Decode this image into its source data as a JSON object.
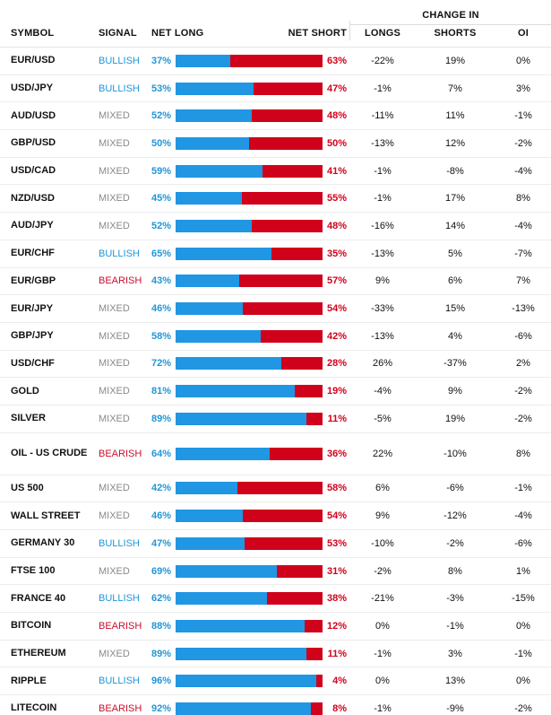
{
  "header": {
    "symbol": "SYMBOL",
    "signal": "SIGNAL",
    "net_long": "NET LONG",
    "net_short": "NET SHORT",
    "change_in": "CHANGE IN",
    "longs": "LONGS",
    "shorts": "SHORTS",
    "oi": "OI"
  },
  "colors": {
    "long": "#2196e3",
    "short": "#d0021b",
    "bullish": "#2196d8",
    "bearish": "#c8102e",
    "mixed": "#8a8a8a"
  },
  "rows": [
    {
      "symbol": "EUR/USD",
      "signal": "BULLISH",
      "net_long": "37%",
      "long_pct": 37,
      "net_short": "63%",
      "longs": "-22%",
      "shorts": "19%",
      "oi": "0%"
    },
    {
      "symbol": "USD/JPY",
      "signal": "BULLISH",
      "net_long": "53%",
      "long_pct": 53,
      "net_short": "47%",
      "longs": "-1%",
      "shorts": "7%",
      "oi": "3%"
    },
    {
      "symbol": "AUD/USD",
      "signal": "MIXED",
      "net_long": "52%",
      "long_pct": 52,
      "net_short": "48%",
      "longs": "-11%",
      "shorts": "11%",
      "oi": "-1%"
    },
    {
      "symbol": "GBP/USD",
      "signal": "MIXED",
      "net_long": "50%",
      "long_pct": 50,
      "net_short": "50%",
      "longs": "-13%",
      "shorts": "12%",
      "oi": "-2%"
    },
    {
      "symbol": "USD/CAD",
      "signal": "MIXED",
      "net_long": "59%",
      "long_pct": 59,
      "net_short": "41%",
      "longs": "-1%",
      "shorts": "-8%",
      "oi": "-4%"
    },
    {
      "symbol": "NZD/USD",
      "signal": "MIXED",
      "net_long": "45%",
      "long_pct": 45,
      "net_short": "55%",
      "longs": "-1%",
      "shorts": "17%",
      "oi": "8%"
    },
    {
      "symbol": "AUD/JPY",
      "signal": "MIXED",
      "net_long": "52%",
      "long_pct": 52,
      "net_short": "48%",
      "longs": "-16%",
      "shorts": "14%",
      "oi": "-4%"
    },
    {
      "symbol": "EUR/CHF",
      "signal": "BULLISH",
      "net_long": "65%",
      "long_pct": 65,
      "net_short": "35%",
      "longs": "-13%",
      "shorts": "5%",
      "oi": "-7%"
    },
    {
      "symbol": "EUR/GBP",
      "signal": "BEARISH",
      "net_long": "43%",
      "long_pct": 43,
      "net_short": "57%",
      "longs": "9%",
      "shorts": "6%",
      "oi": "7%"
    },
    {
      "symbol": "EUR/JPY",
      "signal": "MIXED",
      "net_long": "46%",
      "long_pct": 46,
      "net_short": "54%",
      "longs": "-33%",
      "shorts": "15%",
      "oi": "-13%"
    },
    {
      "symbol": "GBP/JPY",
      "signal": "MIXED",
      "net_long": "58%",
      "long_pct": 58,
      "net_short": "42%",
      "longs": "-13%",
      "shorts": "4%",
      "oi": "-6%"
    },
    {
      "symbol": "USD/CHF",
      "signal": "MIXED",
      "net_long": "72%",
      "long_pct": 72,
      "net_short": "28%",
      "longs": "26%",
      "shorts": "-37%",
      "oi": "2%"
    },
    {
      "symbol": "GOLD",
      "signal": "MIXED",
      "net_long": "81%",
      "long_pct": 81,
      "net_short": "19%",
      "longs": "-4%",
      "shorts": "9%",
      "oi": "-2%"
    },
    {
      "symbol": "SILVER",
      "signal": "MIXED",
      "net_long": "89%",
      "long_pct": 89,
      "net_short": "11%",
      "longs": "-5%",
      "shorts": "19%",
      "oi": "-2%"
    },
    {
      "symbol": "OIL - US CRUDE",
      "signal": "BEARISH",
      "net_long": "64%",
      "long_pct": 64,
      "net_short": "36%",
      "longs": "22%",
      "shorts": "-10%",
      "oi": "8%"
    },
    {
      "symbol": "US 500",
      "signal": "MIXED",
      "net_long": "42%",
      "long_pct": 42,
      "net_short": "58%",
      "longs": "6%",
      "shorts": "-6%",
      "oi": "-1%"
    },
    {
      "symbol": "WALL STREET",
      "signal": "MIXED",
      "net_long": "46%",
      "long_pct": 46,
      "net_short": "54%",
      "longs": "9%",
      "shorts": "-12%",
      "oi": "-4%"
    },
    {
      "symbol": "GERMANY 30",
      "signal": "BULLISH",
      "net_long": "47%",
      "long_pct": 47,
      "net_short": "53%",
      "longs": "-10%",
      "shorts": "-2%",
      "oi": "-6%"
    },
    {
      "symbol": "FTSE 100",
      "signal": "MIXED",
      "net_long": "69%",
      "long_pct": 69,
      "net_short": "31%",
      "longs": "-2%",
      "shorts": "8%",
      "oi": "1%"
    },
    {
      "symbol": "FRANCE 40",
      "signal": "BULLISH",
      "net_long": "62%",
      "long_pct": 62,
      "net_short": "38%",
      "longs": "-21%",
      "shorts": "-3%",
      "oi": "-15%"
    },
    {
      "symbol": "BITCOIN",
      "signal": "BEARISH",
      "net_long": "88%",
      "long_pct": 88,
      "net_short": "12%",
      "longs": "0%",
      "shorts": "-1%",
      "oi": "0%"
    },
    {
      "symbol": "ETHEREUM",
      "signal": "MIXED",
      "net_long": "89%",
      "long_pct": 89,
      "net_short": "11%",
      "longs": "-1%",
      "shorts": "3%",
      "oi": "-1%"
    },
    {
      "symbol": "RIPPLE",
      "signal": "BULLISH",
      "net_long": "96%",
      "long_pct": 96,
      "net_short": "4%",
      "longs": "0%",
      "shorts": "13%",
      "oi": "0%"
    },
    {
      "symbol": "LITECOIN",
      "signal": "BEARISH",
      "net_long": "92%",
      "long_pct": 92,
      "net_short": "8%",
      "longs": "-1%",
      "shorts": "-9%",
      "oi": "-2%"
    }
  ]
}
